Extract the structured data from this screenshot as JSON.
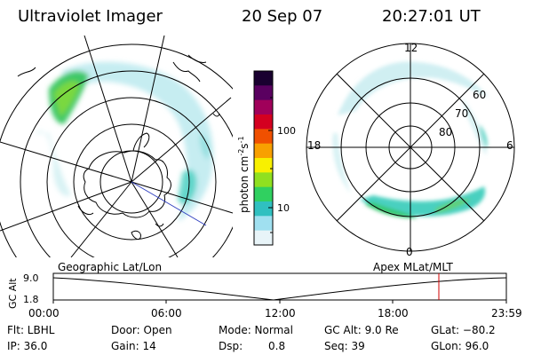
{
  "header": {
    "title": "Ultraviolet Imager",
    "date": "20 Sep 07",
    "time": "20:27:01 UT"
  },
  "colorbar": {
    "unit": "photon cm",
    "unit_exp1": "-2",
    "unit_s": "s",
    "unit_exp2": "-1",
    "ticks": [
      "100",
      "10"
    ],
    "colors": [
      "#1a0030",
      "#5a0060",
      "#a0005a",
      "#d40020",
      "#f05000",
      "#f8a000",
      "#f8f000",
      "#90e020",
      "#30d060",
      "#30c0c0",
      "#a0e0f0",
      "#e8f4f8"
    ]
  },
  "mlt_plot": {
    "lat_labels": [
      "60",
      "70",
      "80"
    ],
    "hour_labels": {
      "top": "12",
      "left": "18",
      "right": "6",
      "bottom": "0"
    }
  },
  "timeline": {
    "left_label": "Geographic Lat/Lon",
    "right_label": "Apex MLat/MLT",
    "y_axis_label": "GC Alt",
    "y_ticks": [
      "9.0",
      "1.8"
    ],
    "x_ticks": [
      "00:00",
      "06:00",
      "12:00",
      "18:00",
      "23:59"
    ],
    "marker_color": "#d00000"
  },
  "footer": {
    "flt": "Flt: LBHL",
    "door": "Door: Open",
    "mode": "Mode: Normal",
    "gcalt": "GC Alt: 9.0 Re",
    "glat": "GLat: −80.2",
    "ip": "IP: 36.0",
    "gain": "Gain: 14",
    "dsp_label": "Dsp:",
    "dsp_value": "0.8",
    "seq": "Seq: 39",
    "glon": "GLon: 96.0"
  }
}
